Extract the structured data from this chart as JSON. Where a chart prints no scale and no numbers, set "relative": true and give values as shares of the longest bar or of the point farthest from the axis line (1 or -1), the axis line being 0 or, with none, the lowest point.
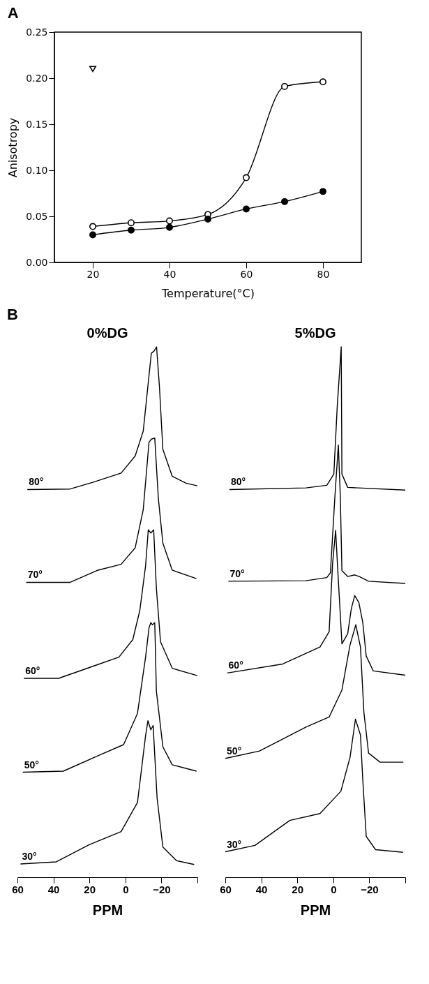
{
  "chart_data": [
    {
      "type": "line",
      "title": "A",
      "xlabel": "Temperature(°C)",
      "ylabel": "Anisotropy",
      "x": [
        20,
        30,
        40,
        50,
        60,
        70,
        80
      ],
      "series": [
        {
          "color": "#000000",
          "marker": "circle",
          "values": [
            0.039,
            0.043,
            0.045,
            0.052,
            0.092,
            0.191,
            0.196
          ]
        },
        {
          "color": "#000000",
          "marker": "circle",
          "values": [
            0.03,
            0.035,
            0.038,
            0.047,
            0.058,
            0.066,
            0.077
          ]
        },
        {
          "type": "scatter",
          "color": "#000000",
          "marker": "triangle",
          "x": [
            20
          ],
          "values": [
            0.21
          ]
        }
      ],
      "xlim": [
        10,
        90
      ],
      "xticks": [
        20,
        40,
        60,
        80
      ],
      "ylim": [
        0,
        0.25
      ],
      "yticks": [
        {
          "value": 0,
          "label": "0.00"
        },
        {
          "value": 0.05,
          "label": "0.05"
        },
        {
          "value": 0.1,
          "label": "0.10"
        },
        {
          "value": 0.15,
          "label": "0.15"
        },
        {
          "value": 0.2,
          "label": "0.20"
        },
        {
          "value": 0.25,
          "label": "0.25"
        }
      ]
    },
    {
      "type": "line",
      "title": "0%DG",
      "annotations": [
        "B"
      ],
      "xlabel": "PPM",
      "relative": true,
      "marker": "none",
      "line_style": "solid",
      "xlim": [
        60,
        -40
      ],
      "xticks": [
        60,
        40,
        20,
        0,
        -20,
        {
          "value": -40,
          "label": null
        }
      ],
      "series": [
        {
          "name": "80°",
          "color": "#000000",
          "x": [
            54.5,
            30.7,
            17.8,
            2.4,
            -5.4,
            -9.9,
            -13.1,
            -14.4,
            -15.9,
            -17.3,
            -18.9,
            -20.8,
            -26,
            -33.7,
            -40
          ],
          "values": [
            0.731,
            0.732,
            0.745,
            0.762,
            0.794,
            0.841,
            0.946,
            0.988,
            0.992,
            1.0,
            0.925,
            0.807,
            0.756,
            0.743,
            0.738
          ]
        },
        {
          "name": "70°",
          "color": "#000000",
          "x": [
            55.1,
            30.7,
            15.2,
            2.4,
            -5.4,
            -9.9,
            -13.1,
            -14.4,
            -16.3,
            -18.3,
            -20.8,
            -26,
            -39.5
          ],
          "values": [
            0.556,
            0.556,
            0.579,
            0.59,
            0.621,
            0.693,
            0.82,
            0.826,
            0.828,
            0.714,
            0.63,
            0.579,
            0.563
          ]
        },
        {
          "name": "60°",
          "color": "#000000",
          "x": [
            56.4,
            37.1,
            17.8,
            3.6,
            -4.1,
            -8,
            -11.2,
            -12.7,
            -14.1,
            -15.7,
            -17.2,
            -19.5,
            -26,
            -40
          ],
          "values": [
            0.375,
            0.375,
            0.398,
            0.415,
            0.448,
            0.503,
            0.587,
            0.655,
            0.649,
            0.655,
            0.545,
            0.444,
            0.394,
            0.38
          ]
        },
        {
          "name": "50°",
          "color": "#000000",
          "x": [
            57,
            34.5,
            15.2,
            1.0,
            -6.7,
            -11.2,
            -13.1,
            -14.1,
            -15,
            -16.3,
            -17.2,
            -20.8,
            -26,
            -39.5
          ],
          "values": [
            0.198,
            0.2,
            0.229,
            0.25,
            0.309,
            0.415,
            0.47,
            0.48,
            0.476,
            0.48,
            0.351,
            0.246,
            0.212,
            0.2
          ]
        },
        {
          "name": "30°",
          "color": "#000000",
          "x": [
            58.3,
            38.4,
            20.3,
            2.4,
            -6.7,
            -11.2,
            -12.5,
            -14.1,
            -15.4,
            -17.6,
            -20.8,
            -28.5,
            -38.2
          ],
          "values": [
            0.025,
            0.029,
            0.061,
            0.086,
            0.141,
            0.267,
            0.295,
            0.278,
            0.286,
            0.149,
            0.057,
            0.031,
            0.024
          ]
        }
      ]
    },
    {
      "type": "line",
      "title": "5%DG",
      "xlabel": "PPM",
      "relative": true,
      "marker": "none",
      "line_style": "solid",
      "xlim": [
        60,
        -40
      ],
      "xticks": [
        60,
        40,
        20,
        0,
        -20,
        {
          "value": -40,
          "label": null
        }
      ],
      "series": [
        {
          "name": "80°",
          "color": "#000000",
          "x": [
            57.7,
            15.2,
            3.6,
            -0.3,
            -2.2,
            -4.4,
            -4.8,
            -8,
            -40
          ],
          "values": [
            0.731,
            0.734,
            0.739,
            0.76,
            0.888,
            1.0,
            0.76,
            0.735,
            0.73
          ]
        },
        {
          "name": "70°",
          "color": "#000000",
          "x": [
            58.3,
            15.2,
            3.6,
            1.6,
            -0.9,
            -2.8,
            -3.9,
            -4.8,
            -8,
            -11.9,
            -14.4,
            -19.6,
            -40
          ],
          "values": [
            0.558,
            0.559,
            0.565,
            0.574,
            0.718,
            0.815,
            0.718,
            0.578,
            0.567,
            0.57,
            0.567,
            0.558,
            0.554
          ]
        },
        {
          "name": "60°",
          "color": "#000000",
          "x": [
            59,
            28.1,
            7.4,
            2.3,
            0.4,
            -1.3,
            -2.3,
            -4.8,
            -8,
            -10,
            -11.9,
            -14.2,
            -16.4,
            -18.3,
            -22.2,
            -40
          ],
          "values": [
            0.385,
            0.402,
            0.434,
            0.463,
            0.591,
            0.654,
            0.591,
            0.44,
            0.459,
            0.506,
            0.531,
            0.518,
            0.48,
            0.417,
            0.389,
            0.381
          ]
        },
        {
          "name": "50°",
          "color": "#000000",
          "x": [
            60,
            41,
            15.2,
            2.3,
            -4.8,
            -9.3,
            -12.5,
            -15.1,
            -17,
            -19.6,
            -26,
            -38.9
          ],
          "values": [
            0.224,
            0.238,
            0.283,
            0.302,
            0.353,
            0.438,
            0.476,
            0.434,
            0.311,
            0.234,
            0.217,
            0.217
          ]
        },
        {
          "name": "30°",
          "color": "#000000",
          "x": [
            60,
            43.5,
            24.2,
            7.4,
            -4.2,
            -9.3,
            -12.3,
            -15.1,
            -16.4,
            -18.3,
            -23.5,
            -38.7
          ],
          "values": [
            0.048,
            0.06,
            0.107,
            0.12,
            0.162,
            0.226,
            0.298,
            0.268,
            0.183,
            0.077,
            0.052,
            0.047
          ]
        }
      ]
    }
  ]
}
